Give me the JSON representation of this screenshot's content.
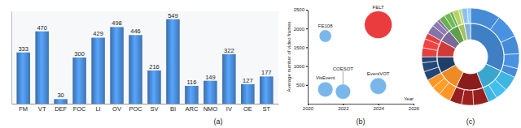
{
  "chart_data": [
    {
      "type": "bar",
      "title": "(a)",
      "categories": [
        "FM",
        "VT",
        "DEF",
        "FOC",
        "LI",
        "OV",
        "POC",
        "SV",
        "BI",
        "ARC",
        "NMO",
        "IV",
        "OE",
        "ST"
      ],
      "values": [
        333,
        470,
        30,
        300,
        429,
        498,
        446,
        216,
        549,
        116,
        149,
        322,
        127,
        177
      ],
      "color": "#4a8bd6",
      "ylim": [
        0,
        600
      ],
      "data_labels": true,
      "tick_labels": "x"
    },
    {
      "type": "bubble",
      "title": "(b)",
      "x_label": "Year",
      "y_label": "Average number of video frames",
      "x": [
        2021,
        2021,
        2022,
        2024,
        2024
      ],
      "values": [
        1800,
        380,
        320,
        470,
        2100
      ],
      "sizes": [
        81,
        121,
        121,
        144,
        400
      ],
      "labels": [
        "FE108",
        "VisEvent",
        "COESOT",
        "EventVOT",
        "FELT"
      ],
      "colors": [
        "#6aaee8",
        "#6aaee8",
        "#6aaee8",
        "#6aaee8",
        "#e8262a"
      ],
      "xlim": [
        2020,
        2026
      ],
      "xticks": [
        2020,
        2022,
        2024,
        2026
      ],
      "ylim": [
        0,
        2500
      ],
      "yticks": [
        500,
        1000,
        1500,
        2000,
        2500
      ]
    },
    {
      "type": "sunburst",
      "title": "(c)",
      "values": [
        32,
        12,
        13,
        10,
        8,
        8,
        6,
        5,
        3,
        3
      ],
      "colors": [
        "#3f7fc4",
        "#3aa6cf",
        "#8b1c1c",
        "#ef8a24",
        "#1f3f6b",
        "#d23a3a",
        "#7a6a9a",
        "#5fa04a",
        "#a8c060",
        "#7fb0e0"
      ],
      "children": [
        [
          10,
          8,
          6,
          5,
          3
        ],
        [
          5,
          4,
          3
        ],
        [
          5,
          4,
          4
        ],
        [
          4,
          3,
          3
        ],
        [
          3,
          3,
          2
        ],
        [
          3,
          3,
          2
        ],
        [
          3,
          2,
          1
        ],
        [
          2,
          2,
          1
        ],
        [
          2,
          1
        ],
        [
          2,
          1
        ]
      ],
      "tick_labels": false
    }
  ]
}
